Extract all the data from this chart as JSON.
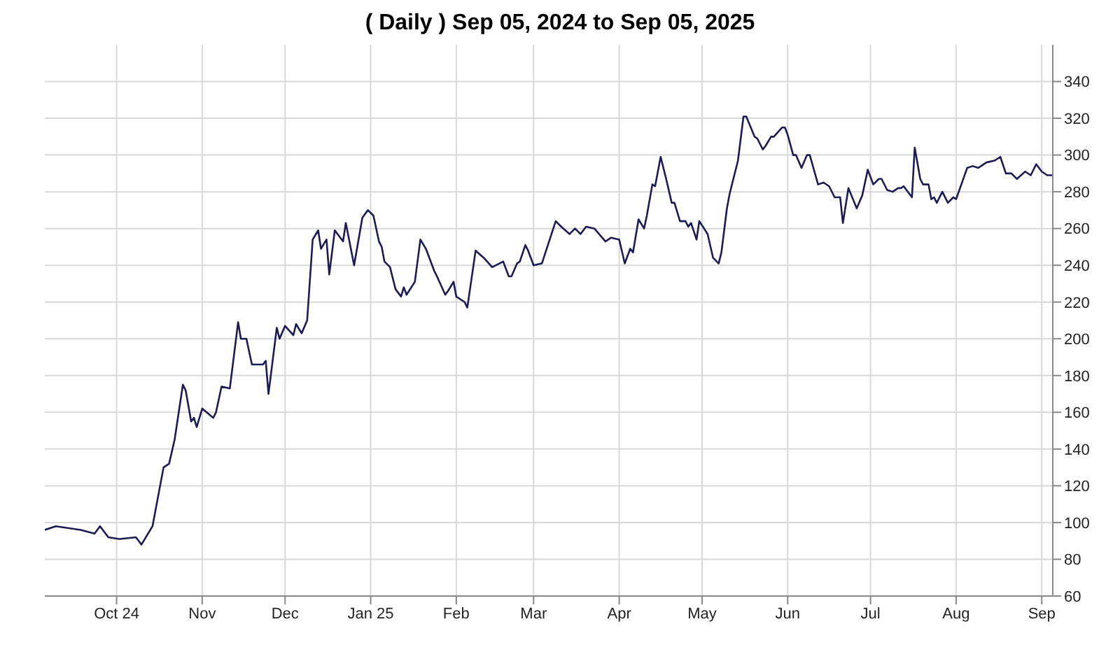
{
  "chart_data": {
    "type": "line",
    "title": "( Daily ) Sep 05, 2024 to Sep 05, 2025",
    "color": "#1c1c55",
    "marker": "none",
    "line_style": "solid",
    "grid": true,
    "x": [
      "2024-09-05",
      "2024-09-09",
      "2024-09-18",
      "2024-09-23",
      "2024-09-25",
      "2024-09-28",
      "2024-10-02",
      "2024-10-08",
      "2024-10-10",
      "2024-10-14",
      "2024-10-18",
      "2024-10-20",
      "2024-10-22",
      "2024-10-25",
      "2024-10-26",
      "2024-10-28",
      "2024-10-29",
      "2024-10-30",
      "2024-11-01",
      "2024-11-05",
      "2024-11-06",
      "2024-11-08",
      "2024-11-11",
      "2024-11-14",
      "2024-11-15",
      "2024-11-17",
      "2024-11-19",
      "2024-11-23",
      "2024-11-24",
      "2024-11-25",
      "2024-11-28",
      "2024-11-29",
      "2024-12-01",
      "2024-12-04",
      "2024-12-05",
      "2024-12-07",
      "2024-12-09",
      "2024-12-11",
      "2024-12-13",
      "2024-12-14",
      "2024-12-16",
      "2024-12-17",
      "2024-12-19",
      "2024-12-22",
      "2024-12-23",
      "2024-12-26",
      "2024-12-29",
      "2024-12-31",
      "2025-01-02",
      "2025-01-04",
      "2025-01-05",
      "2025-01-06",
      "2025-01-08",
      "2025-01-10",
      "2025-01-12",
      "2025-01-13",
      "2025-01-14",
      "2025-01-17",
      "2025-01-19",
      "2025-01-21",
      "2025-01-24",
      "2025-01-25",
      "2025-01-28",
      "2025-01-29",
      "2025-01-31",
      "2025-02-01",
      "2025-02-04",
      "2025-02-05",
      "2025-02-08",
      "2025-02-11",
      "2025-02-14",
      "2025-02-18",
      "2025-02-20",
      "2025-02-21",
      "2025-02-23",
      "2025-02-24",
      "2025-02-26",
      "2025-02-27",
      "2025-03-01",
      "2025-03-04",
      "2025-03-09",
      "2025-03-11",
      "2025-03-14",
      "2025-03-16",
      "2025-03-18",
      "2025-03-20",
      "2025-03-23",
      "2025-03-27",
      "2025-03-29",
      "2025-04-01",
      "2025-04-03",
      "2025-04-05",
      "2025-04-06",
      "2025-04-08",
      "2025-04-10",
      "2025-04-11",
      "2025-04-13",
      "2025-04-14",
      "2025-04-16",
      "2025-04-18",
      "2025-04-20",
      "2025-04-21",
      "2025-04-23",
      "2025-04-25",
      "2025-04-26",
      "2025-04-27",
      "2025-04-29",
      "2025-04-30",
      "2025-05-03",
      "2025-05-05",
      "2025-05-07",
      "2025-05-08",
      "2025-05-10",
      "2025-05-11",
      "2025-05-14",
      "2025-05-16",
      "2025-05-17",
      "2025-05-20",
      "2025-05-21",
      "2025-05-23",
      "2025-05-24",
      "2025-05-26",
      "2025-05-27",
      "2025-05-30",
      "2025-05-31",
      "2025-06-01",
      "2025-06-03",
      "2025-06-04",
      "2025-06-06",
      "2025-06-08",
      "2025-06-09",
      "2025-06-12",
      "2025-06-14",
      "2025-06-16",
      "2025-06-18",
      "2025-06-20",
      "2025-06-21",
      "2025-06-23",
      "2025-06-26",
      "2025-06-28",
      "2025-06-30",
      "2025-07-02",
      "2025-07-04",
      "2025-07-05",
      "2025-07-07",
      "2025-07-09",
      "2025-07-11",
      "2025-07-12",
      "2025-07-13",
      "2025-07-15",
      "2025-07-16",
      "2025-07-17",
      "2025-07-19",
      "2025-07-20",
      "2025-07-22",
      "2025-07-23",
      "2025-07-24",
      "2025-07-25",
      "2025-07-27",
      "2025-07-29",
      "2025-07-31",
      "2025-08-01",
      "2025-08-05",
      "2025-08-07",
      "2025-08-09",
      "2025-08-10",
      "2025-08-12",
      "2025-08-15",
      "2025-08-17",
      "2025-08-19",
      "2025-08-21",
      "2025-08-23",
      "2025-08-26",
      "2025-08-28",
      "2025-08-30",
      "2025-09-01",
      "2025-09-03",
      "2025-09-05"
    ],
    "values": [
      96,
      98,
      96,
      94,
      98,
      92,
      91,
      92,
      88,
      98,
      130,
      132,
      145,
      175,
      172,
      155,
      157,
      152,
      162,
      157,
      160,
      174,
      173,
      209,
      200,
      200,
      186,
      186,
      188,
      170,
      206,
      200,
      207,
      202,
      208,
      203,
      210,
      254,
      259,
      249,
      254,
      235,
      259,
      253,
      263,
      240,
      266,
      270,
      267,
      253,
      250,
      242,
      239,
      227,
      223,
      228,
      224,
      231,
      254,
      249,
      237,
      234,
      224,
      226,
      231,
      223,
      220,
      217,
      248,
      244,
      239,
      242,
      234,
      234,
      241,
      242,
      251,
      248,
      240,
      241,
      264,
      261,
      257,
      260,
      257,
      261,
      260,
      253,
      255,
      254,
      241,
      249,
      247,
      265,
      260,
      267,
      284,
      283,
      299,
      287,
      274,
      274,
      264,
      264,
      261,
      263,
      254,
      264,
      257,
      244,
      241,
      247,
      271,
      279,
      297,
      321,
      321,
      310,
      309,
      303,
      305,
      310,
      310,
      315,
      315,
      311,
      300,
      300,
      293,
      300,
      300,
      284,
      285,
      283,
      277,
      277,
      263,
      282,
      271,
      278,
      292,
      284,
      287,
      287,
      281,
      280,
      282,
      282,
      283,
      279,
      277,
      304,
      287,
      284,
      284,
      276,
      277,
      274,
      280,
      274,
      277,
      276,
      293,
      294,
      293,
      294,
      296,
      297,
      299,
      290,
      290,
      287,
      291,
      289,
      295,
      291,
      289,
      289
    ],
    "xlim": [
      "2024-09-05",
      "2025-09-05"
    ],
    "ylim": [
      60,
      360
    ],
    "xticks": [
      {
        "value": "2024-10-01",
        "label": "Oct 24"
      },
      {
        "value": "2024-11-01",
        "label": "Nov"
      },
      {
        "value": "2024-12-01",
        "label": "Dec"
      },
      {
        "value": "2025-01-01",
        "label": "Jan 25"
      },
      {
        "value": "2025-02-01",
        "label": "Feb"
      },
      {
        "value": "2025-03-01",
        "label": "Mar"
      },
      {
        "value": "2025-04-01",
        "label": "Apr"
      },
      {
        "value": "2025-05-01",
        "label": "May"
      },
      {
        "value": "2025-06-01",
        "label": "Jun"
      },
      {
        "value": "2025-07-01",
        "label": "Jul"
      },
      {
        "value": "2025-08-01",
        "label": "Aug"
      },
      {
        "value": "2025-09-01",
        "label": "Sep"
      }
    ],
    "yticks": [
      60,
      80,
      100,
      120,
      140,
      160,
      180,
      200,
      220,
      240,
      260,
      280,
      300,
      320,
      340
    ]
  }
}
